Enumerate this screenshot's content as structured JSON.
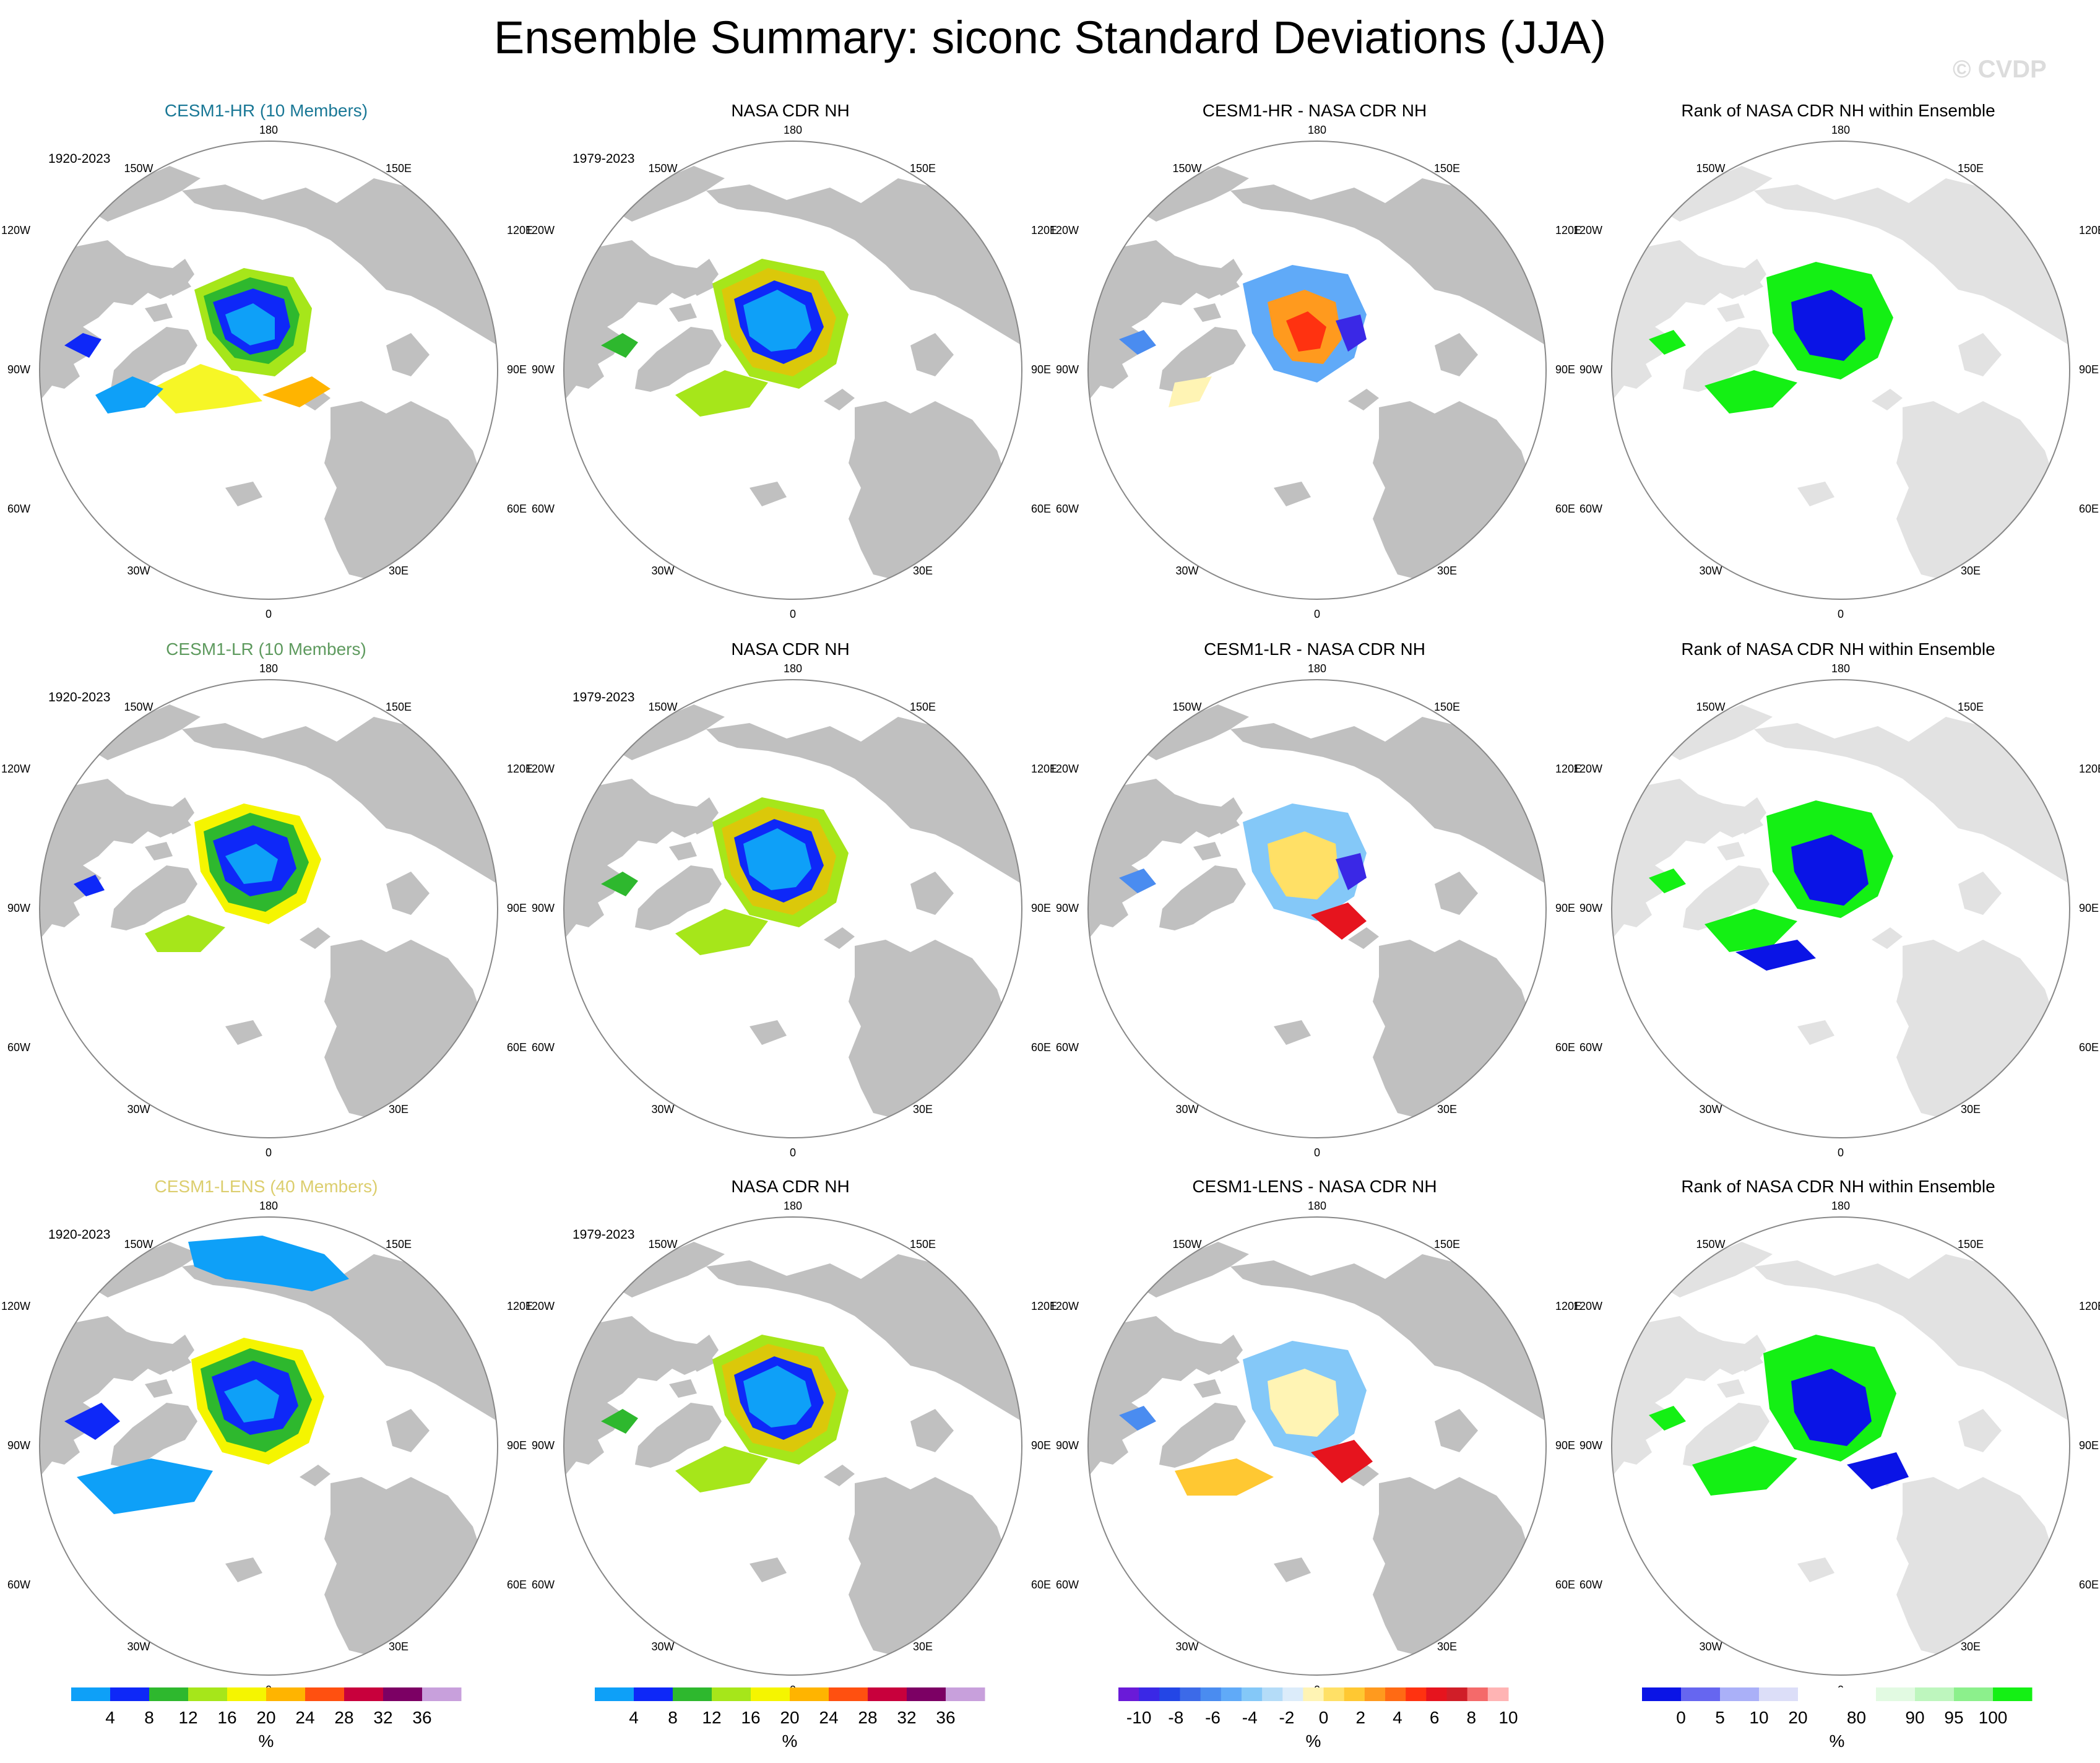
{
  "title": "Ensemble Summary: siconc Standard Deviations (JJA)",
  "watermark": "© CVDP",
  "colors": {
    "land": "#c0c0c0",
    "rank_background": "#e2e2e2",
    "ocean": "#ffffff",
    "std_scale": [
      "#0ea0f8",
      "#0e28f8",
      "#2eb82e",
      "#a6e61a",
      "#f5f500",
      "#ffb400",
      "#ff5010",
      "#c8003c",
      "#7c0064",
      "#c8a0dc"
    ],
    "diff_scale": [
      "#6a1ad8",
      "#3a28e6",
      "#2346e6",
      "#3c6ae8",
      "#4a8cf0",
      "#60aaf8",
      "#84c8f8",
      "#b4dcf8",
      "#dcecfa",
      "#fff4b4",
      "#ffe066",
      "#ffc832",
      "#ff9a1e",
      "#ff6a14",
      "#ff3210",
      "#e6141e",
      "#d01e28",
      "#f46a6a",
      "#ffb4b4"
    ],
    "rank_scale": [
      "#0a14e6",
      "#6666f0",
      "#aab0f8",
      "#dcdef8",
      "#ffffff",
      "#ffffff",
      "#e2fae2",
      "#bef6be",
      "#8cf08c",
      "#14f014"
    ]
  },
  "map_labels": {
    "top": "180",
    "bottom": "0",
    "upper_left": "150W",
    "upper_right": "150E",
    "mid_upper_left": "120W",
    "mid_upper_right": "120E",
    "left": "90W",
    "right": "90E",
    "mid_lower_left": "60W",
    "mid_lower_right": "60E",
    "lower_left": "30W",
    "lower_right": "30E"
  },
  "rows": [
    {
      "model_title": "CESM1-HR (10 Members)",
      "model_color": "#1a7896",
      "model_period": "1920-2023",
      "obs_title": "NASA CDR NH",
      "obs_period": "1979-2023",
      "diff_title": "CESM1-HR - NASA CDR NH",
      "rank_title": "Rank of NASA CDR NH within Ensemble"
    },
    {
      "model_title": "CESM1-LR (10 Members)",
      "model_color": "#5e9a5e",
      "model_period": "1920-2023",
      "obs_title": "NASA CDR NH",
      "obs_period": "1979-2023",
      "diff_title": "CESM1-LR - NASA CDR NH",
      "rank_title": "Rank of NASA CDR NH within Ensemble"
    },
    {
      "model_title": "CESM1-LENS (40 Members)",
      "model_color": "#dcce6e",
      "model_period": "1920-2023",
      "obs_title": "NASA CDR NH",
      "obs_period": "1979-2023",
      "diff_title": "CESM1-LENS - NASA CDR NH",
      "rank_title": "Rank of NASA CDR NH within Ensemble"
    }
  ],
  "colorbars": {
    "std": {
      "ticks": [
        "4",
        "8",
        "12",
        "16",
        "20",
        "24",
        "28",
        "32",
        "36"
      ],
      "unit": "%"
    },
    "diff": {
      "ticks": [
        "-10",
        "-8",
        "-6",
        "-4",
        "-2",
        "0",
        "2",
        "4",
        "6",
        "8",
        "10"
      ],
      "unit": "%"
    },
    "rank": {
      "ticks": [
        "0",
        "5",
        "10",
        "20",
        "80",
        "90",
        "95",
        "100"
      ],
      "unit": "%"
    }
  }
}
